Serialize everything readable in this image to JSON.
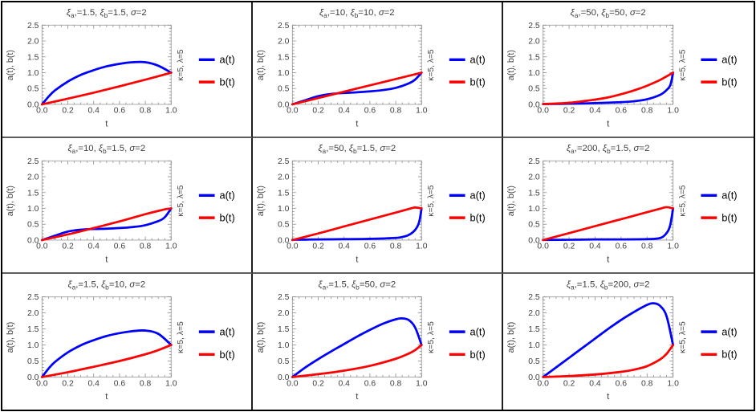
{
  "chart_data": {
    "type": "line",
    "grid_layout": "3x3",
    "xlabel": "t",
    "ylabel": "a(t), b(t)",
    "side_label": "κ=5, λ=5",
    "xlim": [
      0,
      1
    ],
    "ylim": [
      0,
      2.5
    ],
    "x_tick_labels": [
      "0.0",
      "0.2",
      "0.4",
      "0.6",
      "0.8",
      "1.0"
    ],
    "y_tick_labels": [
      "0.0",
      "0.5",
      "1.0",
      "1.5",
      "2.0",
      "2.5"
    ],
    "legend": [
      "a(t)",
      "b(t)"
    ],
    "legend_position": "right",
    "colors": {
      "a": "#0000ff",
      "b": "#ff0000",
      "frame": "#a8a8a8",
      "tick": "#8a8a8a",
      "text": "#3f3f3f",
      "legend_text": "#000000"
    },
    "title_format": {
      "xi": "ξ",
      "sigma": "σ",
      "sub_a": "a",
      "sub_b": "b",
      "comma_eq": ",=",
      "eq": "=",
      "sep": ", "
    },
    "subplots": [
      {
        "title_plain": "ξa,=1.5, ξb=1.5, σ=2",
        "xi_a": "1.5",
        "xi_b": "1.5",
        "sigma": "2",
        "a": {
          "t": [
            0,
            0.05,
            0.1,
            0.2,
            0.3,
            0.4,
            0.5,
            0.6,
            0.7,
            0.8,
            0.9,
            1.0
          ],
          "y": [
            0,
            0.24,
            0.44,
            0.72,
            0.93,
            1.08,
            1.2,
            1.28,
            1.33,
            1.33,
            1.22,
            1.0
          ]
        },
        "b": {
          "t": [
            0,
            0.2,
            0.4,
            0.6,
            0.8,
            1.0
          ],
          "y": [
            0,
            0.18,
            0.37,
            0.57,
            0.78,
            1.0
          ]
        }
      },
      {
        "title_plain": "ξa,=10, ξb=10, σ=2",
        "xi_a": "10",
        "xi_b": "10",
        "sigma": "2",
        "a": {
          "t": [
            0,
            0.1,
            0.2,
            0.3,
            0.4,
            0.5,
            0.6,
            0.7,
            0.8,
            0.9,
            0.95,
            1.0
          ],
          "y": [
            0,
            0.13,
            0.26,
            0.33,
            0.36,
            0.38,
            0.41,
            0.45,
            0.52,
            0.66,
            0.78,
            1.0
          ]
        },
        "b": {
          "t": [
            0,
            0.5,
            1.0
          ],
          "y": [
            0,
            0.5,
            1.0
          ]
        }
      },
      {
        "title_plain": "ξa,=50, ξb=50, σ=2",
        "xi_a": "50",
        "xi_b": "50",
        "sigma": "2",
        "a": {
          "t": [
            0,
            0.2,
            0.4,
            0.6,
            0.7,
            0.8,
            0.9,
            0.95,
            0.98,
            1.0
          ],
          "y": [
            0.01,
            0.02,
            0.04,
            0.07,
            0.1,
            0.16,
            0.3,
            0.45,
            0.62,
            1.0
          ]
        },
        "b": {
          "t": [
            0,
            0.2,
            0.4,
            0.5,
            0.6,
            0.7,
            0.8,
            0.9,
            1.0
          ],
          "y": [
            0.01,
            0.05,
            0.15,
            0.22,
            0.32,
            0.44,
            0.59,
            0.77,
            1.0
          ]
        }
      },
      {
        "title_plain": "ξa,=10, ξb=1.5, σ=2",
        "xi_a": "10",
        "xi_b": "1.5",
        "sigma": "2",
        "a": {
          "t": [
            0,
            0.1,
            0.2,
            0.3,
            0.4,
            0.5,
            0.6,
            0.7,
            0.8,
            0.9,
            0.95,
            1.0
          ],
          "y": [
            0,
            0.14,
            0.27,
            0.33,
            0.35,
            0.36,
            0.38,
            0.41,
            0.47,
            0.6,
            0.72,
            1.0
          ]
        },
        "b": {
          "t": [
            0,
            0.2,
            0.4,
            0.6,
            0.8,
            0.9,
            0.95,
            1.0
          ],
          "y": [
            0,
            0.18,
            0.38,
            0.59,
            0.82,
            0.92,
            0.97,
            1.0
          ]
        }
      },
      {
        "title_plain": "ξa,=50, ξb=1.5, σ=2",
        "xi_a": "50",
        "xi_b": "1.5",
        "sigma": "2",
        "a": {
          "t": [
            0,
            0.2,
            0.4,
            0.6,
            0.8,
            0.85,
            0.9,
            0.95,
            0.98,
            1.0
          ],
          "y": [
            0.01,
            0.02,
            0.03,
            0.04,
            0.07,
            0.1,
            0.16,
            0.32,
            0.55,
            1.0
          ]
        },
        "b": {
          "t": [
            0,
            0.2,
            0.4,
            0.6,
            0.8,
            0.9,
            0.95,
            1.0
          ],
          "y": [
            0,
            0.21,
            0.43,
            0.65,
            0.87,
            0.98,
            1.03,
            1.0
          ]
        }
      },
      {
        "title_plain": "ξa,=200, ξb=1.5, σ=2",
        "xi_a": "200",
        "xi_b": "1.5",
        "sigma": "2",
        "a": {
          "t": [
            0,
            0.2,
            0.4,
            0.6,
            0.8,
            0.88,
            0.92,
            0.96,
            0.98,
            1.0
          ],
          "y": [
            0.005,
            0.01,
            0.02,
            0.02,
            0.03,
            0.05,
            0.1,
            0.28,
            0.5,
            1.0
          ]
        },
        "b": {
          "t": [
            0,
            0.2,
            0.4,
            0.6,
            0.8,
            0.9,
            0.95,
            1.0
          ],
          "y": [
            0,
            0.22,
            0.44,
            0.66,
            0.88,
            0.99,
            1.04,
            1.0
          ]
        }
      },
      {
        "title_plain": "ξa,=1.5, ξb=10, σ=2",
        "xi_a": "1.5",
        "xi_b": "10",
        "sigma": "2",
        "a": {
          "t": [
            0,
            0.05,
            0.1,
            0.2,
            0.3,
            0.4,
            0.5,
            0.6,
            0.7,
            0.8,
            0.9,
            1.0
          ],
          "y": [
            0,
            0.26,
            0.47,
            0.77,
            0.99,
            1.15,
            1.28,
            1.37,
            1.43,
            1.45,
            1.35,
            1.0
          ]
        },
        "b": {
          "t": [
            0,
            0.2,
            0.4,
            0.6,
            0.8,
            0.9,
            1.0
          ],
          "y": [
            0,
            0.15,
            0.32,
            0.5,
            0.71,
            0.84,
            1.0
          ]
        }
      },
      {
        "title_plain": "ξa,=1.5, ξb=50, σ=2",
        "xi_a": "1.5",
        "xi_b": "50",
        "sigma": "2",
        "a": {
          "t": [
            0,
            0.1,
            0.2,
            0.3,
            0.4,
            0.5,
            0.6,
            0.7,
            0.8,
            0.85,
            0.9,
            0.95,
            1.0
          ],
          "y": [
            0,
            0.3,
            0.56,
            0.8,
            1.03,
            1.26,
            1.47,
            1.66,
            1.8,
            1.83,
            1.78,
            1.55,
            1.0
          ]
        },
        "b": {
          "t": [
            0,
            0.2,
            0.4,
            0.6,
            0.8,
            0.9,
            0.95,
            1.0
          ],
          "y": [
            0,
            0.09,
            0.2,
            0.35,
            0.57,
            0.73,
            0.84,
            1.0
          ]
        }
      },
      {
        "title_plain": "ξa,=1.5, ξb=200, σ=2",
        "xi_a": "1.5",
        "xi_b": "200",
        "sigma": "2",
        "a": {
          "t": [
            0,
            0.1,
            0.2,
            0.3,
            0.4,
            0.5,
            0.6,
            0.7,
            0.8,
            0.85,
            0.9,
            0.95,
            1.0
          ],
          "y": [
            0,
            0.3,
            0.6,
            0.9,
            1.2,
            1.5,
            1.78,
            2.03,
            2.25,
            2.3,
            2.22,
            1.9,
            1.0
          ]
        },
        "b": {
          "t": [
            0,
            0.2,
            0.4,
            0.6,
            0.7,
            0.8,
            0.9,
            0.95,
            1.0
          ],
          "y": [
            0,
            0.03,
            0.08,
            0.16,
            0.23,
            0.34,
            0.55,
            0.72,
            1.0
          ]
        }
      }
    ]
  }
}
